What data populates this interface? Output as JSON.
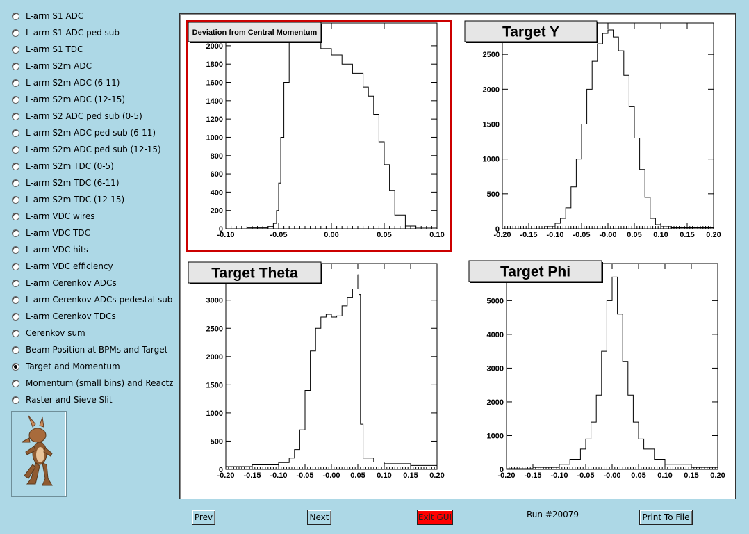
{
  "sidebar": {
    "items": [
      {
        "label": "L-arm S1 ADC",
        "selected": false
      },
      {
        "label": "L-arm S1 ADC ped sub",
        "selected": false
      },
      {
        "label": "L-arm S1 TDC",
        "selected": false
      },
      {
        "label": "L-arm S2m ADC",
        "selected": false
      },
      {
        "label": "L-arm S2m ADC (6-11)",
        "selected": false
      },
      {
        "label": "L-arm S2m ADC (12-15)",
        "selected": false
      },
      {
        "label": "L-arm S2 ADC ped sub (0-5)",
        "selected": false
      },
      {
        "label": "L-arm S2m ADC ped sub (6-11)",
        "selected": false
      },
      {
        "label": "L-arm S2m ADC ped sub (12-15)",
        "selected": false
      },
      {
        "label": "L-arm S2m TDC (0-5)",
        "selected": false
      },
      {
        "label": "L-arm S2m TDC (6-11)",
        "selected": false
      },
      {
        "label": "L-arm S2m TDC (12-15)",
        "selected": false
      },
      {
        "label": "L-arm VDC wires",
        "selected": false
      },
      {
        "label": "L-arm VDC TDC",
        "selected": false
      },
      {
        "label": "L-arm VDC hits",
        "selected": false
      },
      {
        "label": "L-arm VDC efficiency",
        "selected": false
      },
      {
        "label": "L-arm Cerenkov ADCs",
        "selected": false
      },
      {
        "label": "L-arm Cerenkov ADCs pedestal sub",
        "selected": false
      },
      {
        "label": "L-arm Cerenkov TDCs",
        "selected": false
      },
      {
        "label": "Cerenkov sum",
        "selected": false
      },
      {
        "label": "Beam Position at BPMs and Target",
        "selected": false
      },
      {
        "label": "Target and Momentum",
        "selected": true
      },
      {
        "label": "Momentum (small bins) and Reactz",
        "selected": false
      },
      {
        "label": "Raster and Sieve Slit",
        "selected": false
      }
    ],
    "logo_icon": "coyote-icon"
  },
  "buttons": {
    "prev": "Prev",
    "next": "Next",
    "exit": "Exit GUI",
    "print": "Print To File"
  },
  "run_label": "Run #20079",
  "colors": {
    "background": "#add8e6",
    "exit_button": "#ff0000",
    "selected_pad_frame": "#cc0000"
  },
  "chart_data": [
    {
      "type": "histogram",
      "title": "Deviation from Central Momentum",
      "xlim": [
        -0.1,
        0.1
      ],
      "ylim": [
        0,
        2250
      ],
      "xticks": [
        "-0.10",
        "-0.05",
        "0.00",
        "0.05",
        "0.10"
      ],
      "yticks": [
        0,
        200,
        400,
        600,
        800,
        1000,
        1200,
        1400,
        1600,
        1800,
        2000
      ],
      "x": [
        -0.1,
        -0.08,
        -0.06,
        -0.055,
        -0.052,
        -0.05,
        -0.048,
        -0.045,
        -0.04,
        -0.035,
        -0.03,
        -0.025,
        -0.02,
        -0.01,
        0.0,
        0.01,
        0.02,
        0.03,
        0.035,
        0.04,
        0.045,
        0.05,
        0.055,
        0.06,
        0.07,
        0.08,
        0.1
      ],
      "values": [
        0,
        10,
        25,
        60,
        200,
        500,
        1000,
        1600,
        2100,
        2180,
        2170,
        2100,
        2050,
        1970,
        1900,
        1800,
        1700,
        1550,
        1450,
        1250,
        950,
        700,
        420,
        150,
        30,
        15,
        0
      ]
    },
    {
      "type": "histogram",
      "title": "Target Y",
      "xlim": [
        -0.2,
        0.2
      ],
      "ylim": [
        0,
        2950
      ],
      "xticks": [
        "-0.20",
        "-0.15",
        "-0.10",
        "-0.05",
        "-0.00",
        "0.05",
        "0.10",
        "0.15",
        "0.20"
      ],
      "yticks": [
        0,
        500,
        1000,
        1500,
        2000,
        2500
      ],
      "x": [
        -0.2,
        -0.12,
        -0.1,
        -0.09,
        -0.08,
        -0.07,
        -0.06,
        -0.05,
        -0.04,
        -0.03,
        -0.02,
        -0.01,
        0.0,
        0.01,
        0.02,
        0.03,
        0.04,
        0.05,
        0.06,
        0.07,
        0.08,
        0.09,
        0.1,
        0.12,
        0.2
      ],
      "values": [
        0,
        30,
        80,
        150,
        300,
        600,
        1000,
        1500,
        2000,
        2400,
        2650,
        2800,
        2850,
        2750,
        2550,
        2200,
        1750,
        1300,
        850,
        450,
        150,
        60,
        30,
        15,
        0
      ]
    },
    {
      "type": "histogram",
      "title": "Target Theta",
      "xlim": [
        -0.2,
        0.2
      ],
      "ylim": [
        0,
        3650
      ],
      "xticks": [
        "-0.20",
        "-0.15",
        "-0.10",
        "-0.05",
        "-0.00",
        "0.05",
        "0.10",
        "0.15",
        "0.20"
      ],
      "yticks": [
        0,
        500,
        1000,
        1500,
        2000,
        2500,
        3000
      ],
      "x": [
        -0.2,
        -0.15,
        -0.1,
        -0.08,
        -0.07,
        -0.06,
        -0.05,
        -0.04,
        -0.03,
        -0.02,
        -0.01,
        0.0,
        0.01,
        0.02,
        0.03,
        0.04,
        0.05,
        0.052,
        0.055,
        0.06,
        0.08,
        0.1,
        0.15,
        0.2
      ],
      "values": [
        50,
        80,
        120,
        200,
        350,
        700,
        1400,
        2100,
        2500,
        2700,
        2750,
        2700,
        2720,
        2900,
        3050,
        3200,
        3450,
        3100,
        800,
        200,
        130,
        100,
        70,
        40
      ]
    },
    {
      "type": "histogram",
      "title": "Target Phi",
      "xlim": [
        -0.2,
        0.2
      ],
      "ylim": [
        0,
        6100
      ],
      "xticks": [
        "-0.20",
        "-0.15",
        "-0.10",
        "-0.05",
        "-0.00",
        "0.05",
        "0.10",
        "0.15",
        "0.20"
      ],
      "yticks": [
        0,
        1000,
        2000,
        3000,
        4000,
        5000
      ],
      "x": [
        -0.2,
        -0.15,
        -0.1,
        -0.08,
        -0.06,
        -0.05,
        -0.04,
        -0.03,
        -0.02,
        -0.01,
        0.0,
        0.01,
        0.02,
        0.03,
        0.04,
        0.05,
        0.06,
        0.08,
        0.1,
        0.15,
        0.2
      ],
      "values": [
        20,
        60,
        150,
        300,
        600,
        900,
        1400,
        2200,
        3500,
        5000,
        5700,
        4600,
        3200,
        2200,
        1400,
        900,
        600,
        300,
        150,
        60,
        20
      ]
    }
  ]
}
